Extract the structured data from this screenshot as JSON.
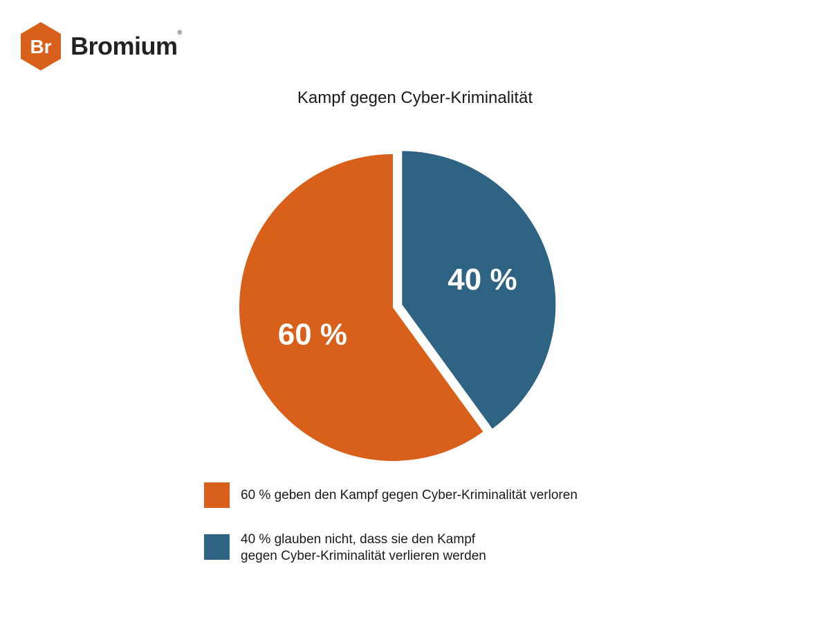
{
  "brand": {
    "logo_mark_text": "Br",
    "name": "Bromium",
    "reg_mark": "®",
    "color": "#D9601A"
  },
  "chart_data": {
    "type": "pie",
    "title": "Kampf gegen Cyber-Kriminalität",
    "slices": [
      {
        "label": "60 % geben den Kampf gegen Cyber-Kriminalität verloren",
        "value": 60,
        "data_label": "60 %",
        "color": "#D9601A",
        "exploded": false
      },
      {
        "label": "40 % glauben nicht, dass sie den Kampf\ngegen Cyber-Kriminalität verlieren werden",
        "value": 40,
        "data_label": "40 %",
        "color": "#2E6384",
        "exploded": true
      }
    ],
    "legend_position": "bottom"
  }
}
